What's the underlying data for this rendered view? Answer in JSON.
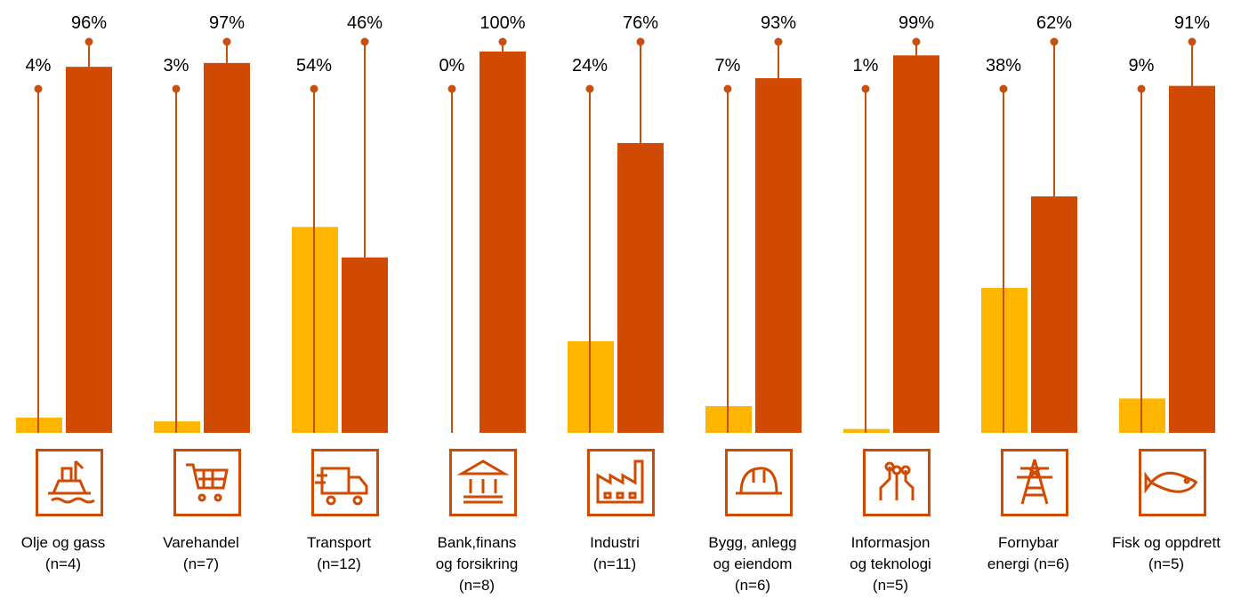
{
  "chart_data": {
    "type": "bar",
    "categories": [
      "Olje og gass\n(n=4)",
      "Varehandel\n(n=7)",
      "Transport\n(n=12)",
      "Bank,finans\nog forsikring\n(n=8)",
      "Industri\n(n=11)",
      "Bygg, anlegg\nog eiendom\n(n=6)",
      "Informasjon\nog teknologi\n(n=5)",
      "Fornybar\nenergi (n=6)",
      "Fisk og oppdrett\n(n=5)"
    ],
    "series": [
      {
        "color": "#ffb600",
        "values": [
          4,
          3,
          54,
          0,
          24,
          7,
          1,
          38,
          9
        ],
        "value_labels": [
          "4%",
          "3%",
          "54%",
          "0%",
          "24%",
          "7%",
          "1%",
          "38%",
          "9%"
        ]
      },
      {
        "color": "#d04a02",
        "values": [
          96,
          97,
          46,
          100,
          76,
          93,
          99,
          62,
          91
        ],
        "value_labels": [
          "96%",
          "97%",
          "46%",
          "100%",
          "76%",
          "93%",
          "99%",
          "62%",
          "91%"
        ]
      }
    ],
    "ylim": [
      0,
      100
    ]
  }
}
